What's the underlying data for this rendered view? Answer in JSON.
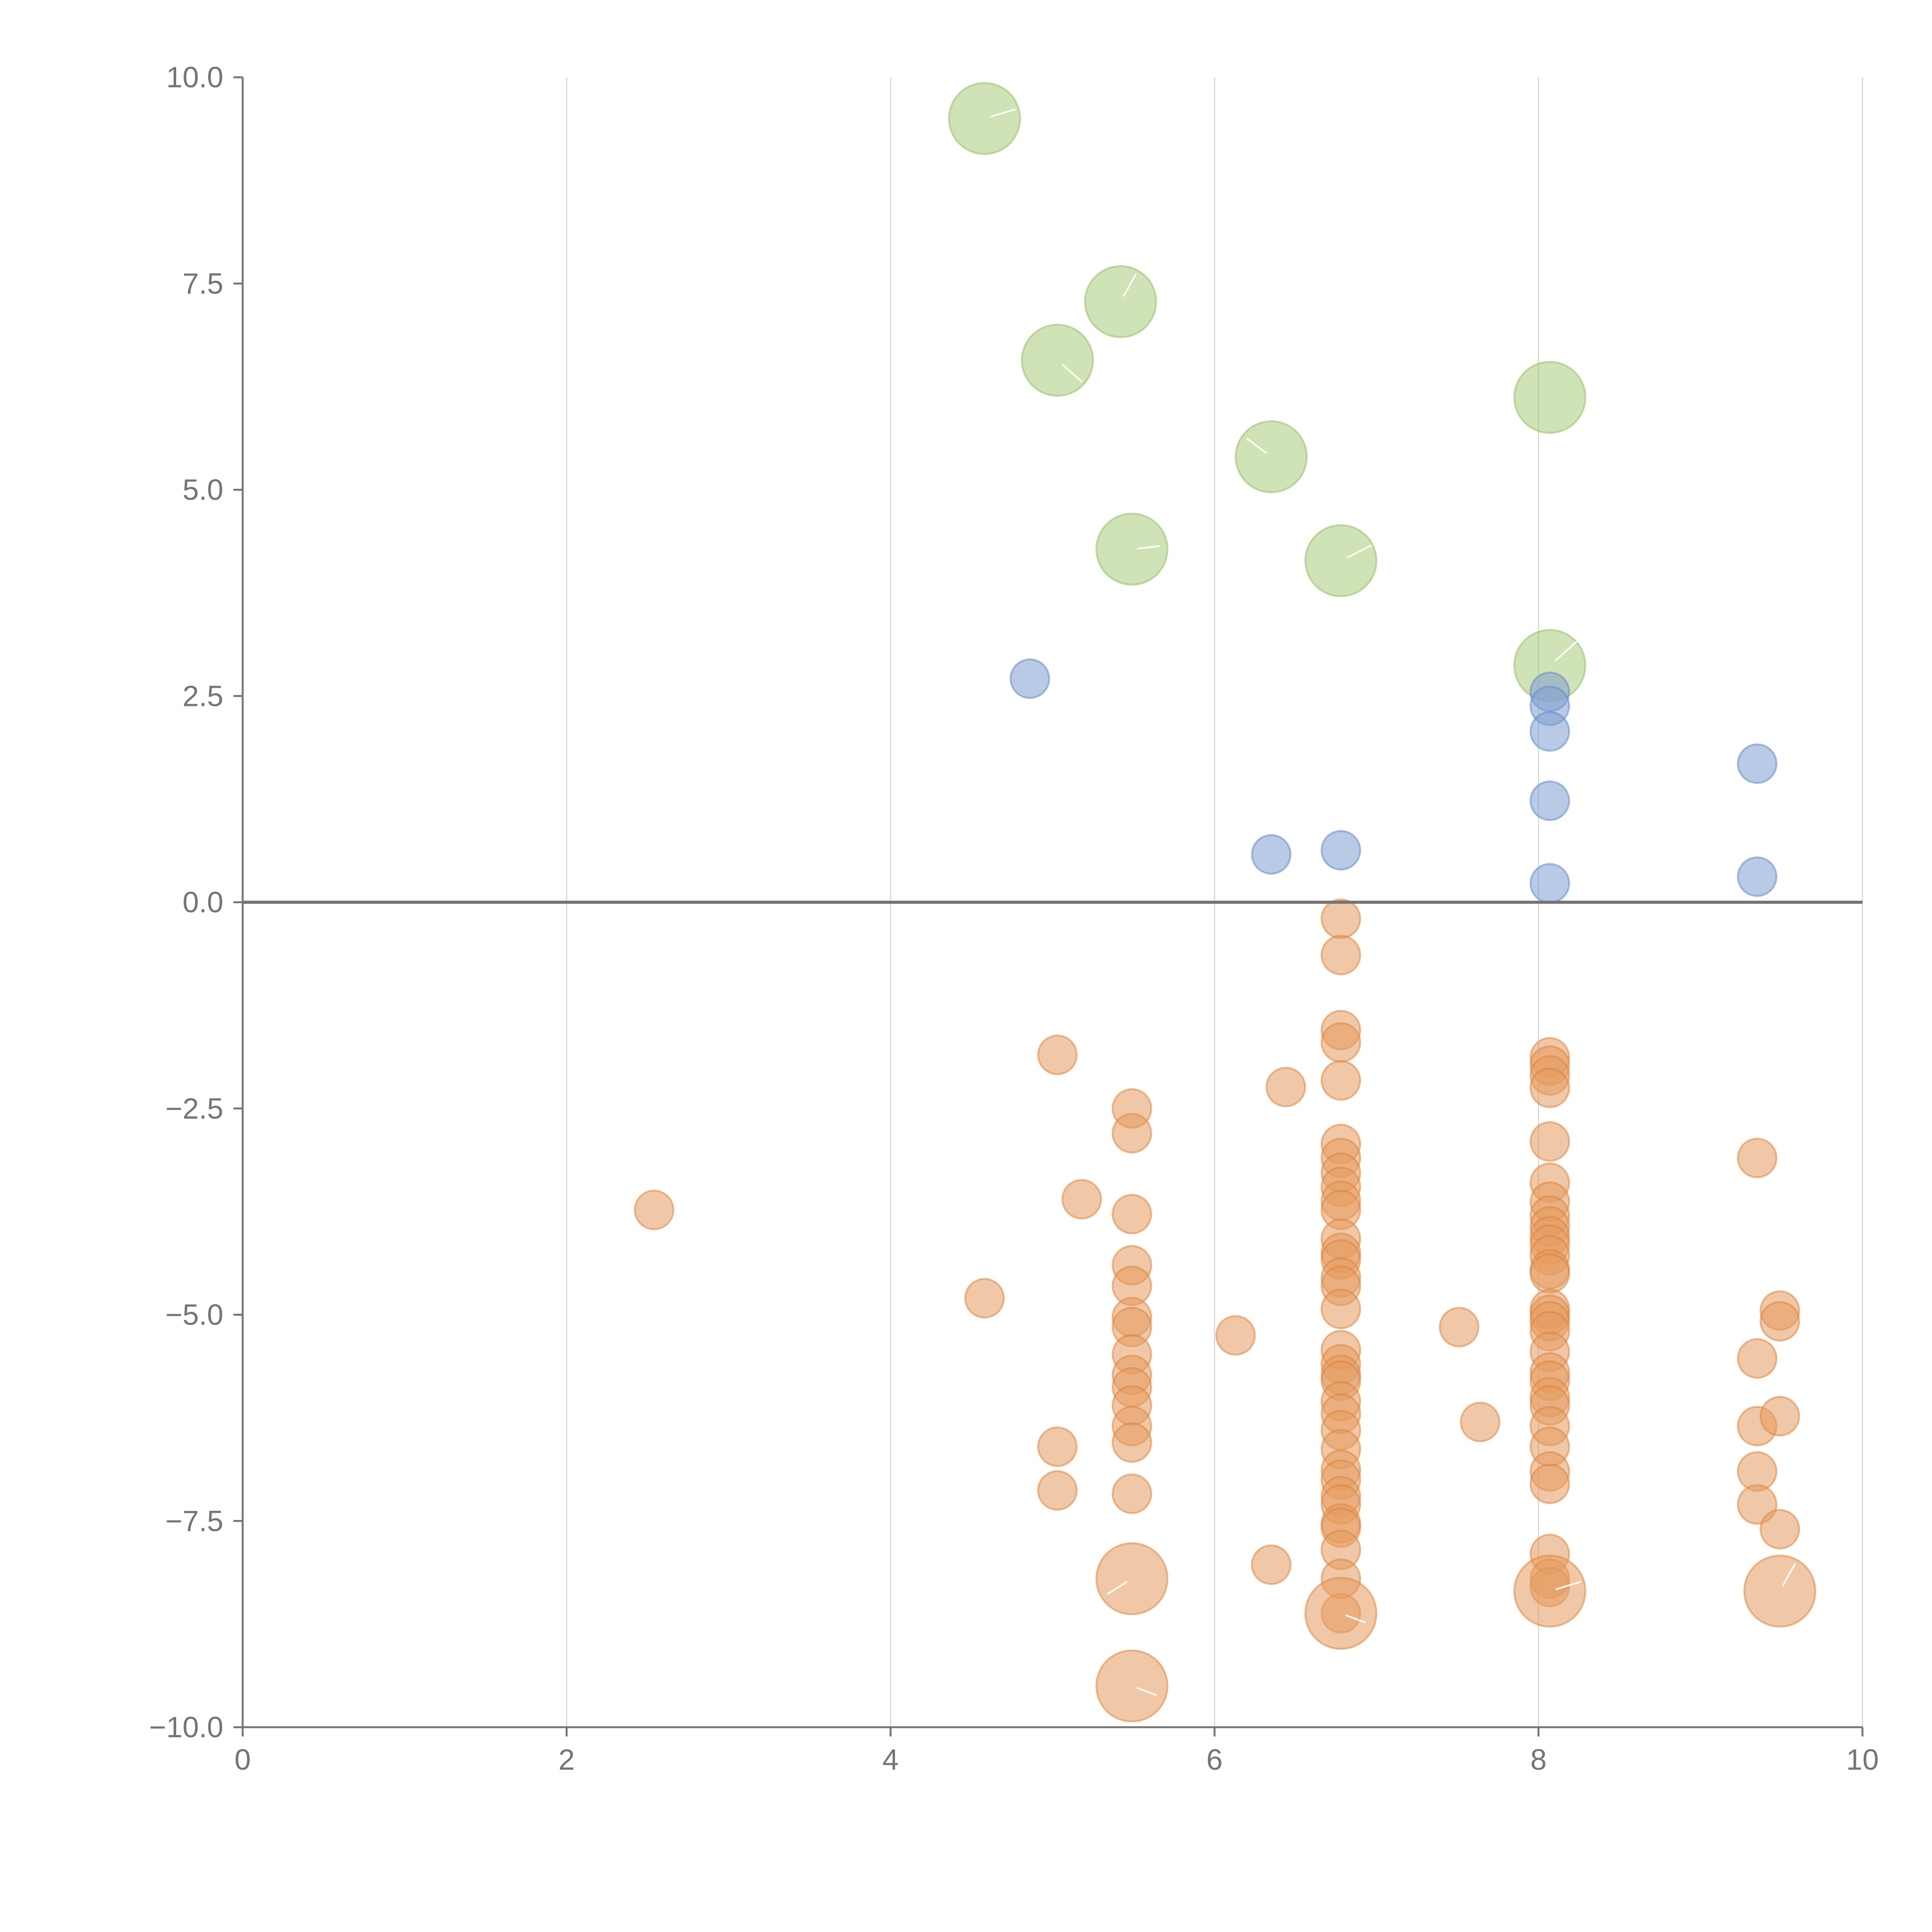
{
  "chart_data": {
    "type": "scatter",
    "title": "",
    "xlabel": "",
    "ylabel": "",
    "xlim": [
      0,
      10
    ],
    "ylim": [
      -10,
      10
    ],
    "grid": {
      "x": true,
      "y": false
    },
    "x_ticks": [
      "0",
      "2",
      "4",
      "6",
      "8",
      "10"
    ],
    "x_tick_values": [
      0,
      2,
      4,
      6,
      8,
      10
    ],
    "y_ticks": [
      "10.0",
      "7.5",
      "5.0",
      "2.5",
      "0.0",
      "−2.5",
      "−5.0",
      "−7.5",
      "−10.0"
    ],
    "y_tick_values": [
      10,
      7.5,
      5,
      2.5,
      0,
      -2.5,
      -5,
      -7.5,
      -10
    ],
    "reference_line_y": 0,
    "colors": {
      "green": "#a9cc7c",
      "blue": "#7f9fd2",
      "orange": "#e59a5e",
      "green_stroke": "#93bb63",
      "blue_stroke": "#5f86c4",
      "orange_stroke": "#d9813b",
      "axis": "#757575",
      "grid": "#d6d6d6"
    },
    "series": [
      {
        "name": "green",
        "size": "large",
        "points": [
          {
            "x": 4.58,
            "y": 9.5
          },
          {
            "x": 5.42,
            "y": 7.28
          },
          {
            "x": 5.03,
            "y": 6.57
          },
          {
            "x": 8.07,
            "y": 6.12
          },
          {
            "x": 6.35,
            "y": 5.4
          },
          {
            "x": 5.49,
            "y": 4.28
          },
          {
            "x": 6.78,
            "y": 4.14
          },
          {
            "x": 8.07,
            "y": 2.87
          }
        ]
      },
      {
        "name": "blue",
        "size": "small",
        "points": [
          {
            "x": 4.86,
            "y": 2.71
          },
          {
            "x": 8.07,
            "y": 2.55
          },
          {
            "x": 8.07,
            "y": 2.38
          },
          {
            "x": 8.07,
            "y": 2.07
          },
          {
            "x": 9.35,
            "y": 1.68
          },
          {
            "x": 8.07,
            "y": 1.23
          },
          {
            "x": 6.78,
            "y": 0.63
          },
          {
            "x": 6.35,
            "y": 0.58
          },
          {
            "x": 9.35,
            "y": 0.31
          },
          {
            "x": 8.07,
            "y": 0.23
          }
        ]
      },
      {
        "name": "orange",
        "size": "small",
        "points": [
          {
            "x": 2.54,
            "y": -3.73
          },
          {
            "x": 4.58,
            "y": -4.8
          },
          {
            "x": 5.03,
            "y": -1.85
          },
          {
            "x": 5.03,
            "y": -6.6
          },
          {
            "x": 5.03,
            "y": -7.13
          },
          {
            "x": 5.18,
            "y": -3.6
          },
          {
            "x": 5.49,
            "y": -2.5
          },
          {
            "x": 5.49,
            "y": -2.8
          },
          {
            "x": 5.49,
            "y": -3.78
          },
          {
            "x": 5.49,
            "y": -4.4
          },
          {
            "x": 5.49,
            "y": -4.65
          },
          {
            "x": 5.49,
            "y": -5.03
          },
          {
            "x": 5.49,
            "y": -5.15
          },
          {
            "x": 5.49,
            "y": -5.48
          },
          {
            "x": 5.49,
            "y": -5.73
          },
          {
            "x": 5.49,
            "y": -5.88
          },
          {
            "x": 5.49,
            "y": -6.1
          },
          {
            "x": 5.49,
            "y": -6.35
          },
          {
            "x": 5.49,
            "y": -6.55
          },
          {
            "x": 5.49,
            "y": -7.17
          },
          {
            "x": 6.13,
            "y": -5.25
          },
          {
            "x": 6.35,
            "y": -8.03
          },
          {
            "x": 6.44,
            "y": -2.24
          },
          {
            "x": 6.78,
            "y": -0.2
          },
          {
            "x": 6.78,
            "y": -0.64
          },
          {
            "x": 6.78,
            "y": -1.55
          },
          {
            "x": 6.78,
            "y": -1.7
          },
          {
            "x": 6.78,
            "y": -2.16
          },
          {
            "x": 6.78,
            "y": -2.93
          },
          {
            "x": 6.78,
            "y": -3.1
          },
          {
            "x": 6.78,
            "y": -3.28
          },
          {
            "x": 6.78,
            "y": -3.45
          },
          {
            "x": 6.78,
            "y": -3.62
          },
          {
            "x": 6.78,
            "y": -3.73
          },
          {
            "x": 6.78,
            "y": -4.08
          },
          {
            "x": 6.78,
            "y": -4.25
          },
          {
            "x": 6.78,
            "y": -4.33
          },
          {
            "x": 6.78,
            "y": -4.55
          },
          {
            "x": 6.78,
            "y": -4.65
          },
          {
            "x": 6.78,
            "y": -4.93
          },
          {
            "x": 6.78,
            "y": -5.43
          },
          {
            "x": 6.78,
            "y": -5.6
          },
          {
            "x": 6.78,
            "y": -5.73
          },
          {
            "x": 6.78,
            "y": -5.8
          },
          {
            "x": 6.78,
            "y": -6.05
          },
          {
            "x": 6.78,
            "y": -6.2
          },
          {
            "x": 6.78,
            "y": -6.4
          },
          {
            "x": 6.78,
            "y": -6.63
          },
          {
            "x": 6.78,
            "y": -6.88
          },
          {
            "x": 6.78,
            "y": -7.0
          },
          {
            "x": 6.78,
            "y": -7.2
          },
          {
            "x": 6.78,
            "y": -7.3
          },
          {
            "x": 6.78,
            "y": -7.53
          },
          {
            "x": 6.78,
            "y": -7.58
          },
          {
            "x": 6.78,
            "y": -7.85
          },
          {
            "x": 6.78,
            "y": -8.2
          },
          {
            "x": 6.78,
            "y": -8.62
          },
          {
            "x": 7.51,
            "y": -5.15
          },
          {
            "x": 7.64,
            "y": -6.3
          },
          {
            "x": 8.07,
            "y": -1.88
          },
          {
            "x": 8.07,
            "y": -1.98
          },
          {
            "x": 8.07,
            "y": -2.1
          },
          {
            "x": 8.07,
            "y": -2.25
          },
          {
            "x": 8.07,
            "y": -2.9
          },
          {
            "x": 8.07,
            "y": -3.4
          },
          {
            "x": 8.07,
            "y": -3.63
          },
          {
            "x": 8.07,
            "y": -3.8
          },
          {
            "x": 8.07,
            "y": -3.93
          },
          {
            "x": 8.07,
            "y": -4.05
          },
          {
            "x": 8.07,
            "y": -4.15
          },
          {
            "x": 8.07,
            "y": -4.28
          },
          {
            "x": 8.07,
            "y": -4.45
          },
          {
            "x": 8.07,
            "y": -4.5
          },
          {
            "x": 8.07,
            "y": -4.93
          },
          {
            "x": 8.07,
            "y": -5.0
          },
          {
            "x": 8.07,
            "y": -5.08
          },
          {
            "x": 8.07,
            "y": -5.2
          },
          {
            "x": 8.07,
            "y": -5.45
          },
          {
            "x": 8.07,
            "y": -5.7
          },
          {
            "x": 8.07,
            "y": -5.8
          },
          {
            "x": 8.07,
            "y": -6.0
          },
          {
            "x": 8.07,
            "y": -6.1
          },
          {
            "x": 8.07,
            "y": -6.35
          },
          {
            "x": 8.07,
            "y": -6.6
          },
          {
            "x": 8.07,
            "y": -6.9
          },
          {
            "x": 8.07,
            "y": -7.05
          },
          {
            "x": 8.07,
            "y": -7.9
          },
          {
            "x": 8.07,
            "y": -8.2
          },
          {
            "x": 8.07,
            "y": -8.3
          },
          {
            "x": 9.35,
            "y": -3.1
          },
          {
            "x": 9.35,
            "y": -5.53
          },
          {
            "x": 9.35,
            "y": -6.35
          },
          {
            "x": 9.35,
            "y": -6.9
          },
          {
            "x": 9.35,
            "y": -7.3
          },
          {
            "x": 9.49,
            "y": -4.95
          },
          {
            "x": 9.49,
            "y": -5.08
          },
          {
            "x": 9.49,
            "y": -6.23
          },
          {
            "x": 9.49,
            "y": -7.6
          }
        ]
      },
      {
        "name": "orange",
        "size": "large",
        "points": [
          {
            "x": 5.49,
            "y": -8.2
          },
          {
            "x": 5.49,
            "y": -9.5
          },
          {
            "x": 6.78,
            "y": -8.62
          },
          {
            "x": 8.07,
            "y": -8.35
          },
          {
            "x": 9.49,
            "y": -8.35
          }
        ]
      }
    ]
  }
}
